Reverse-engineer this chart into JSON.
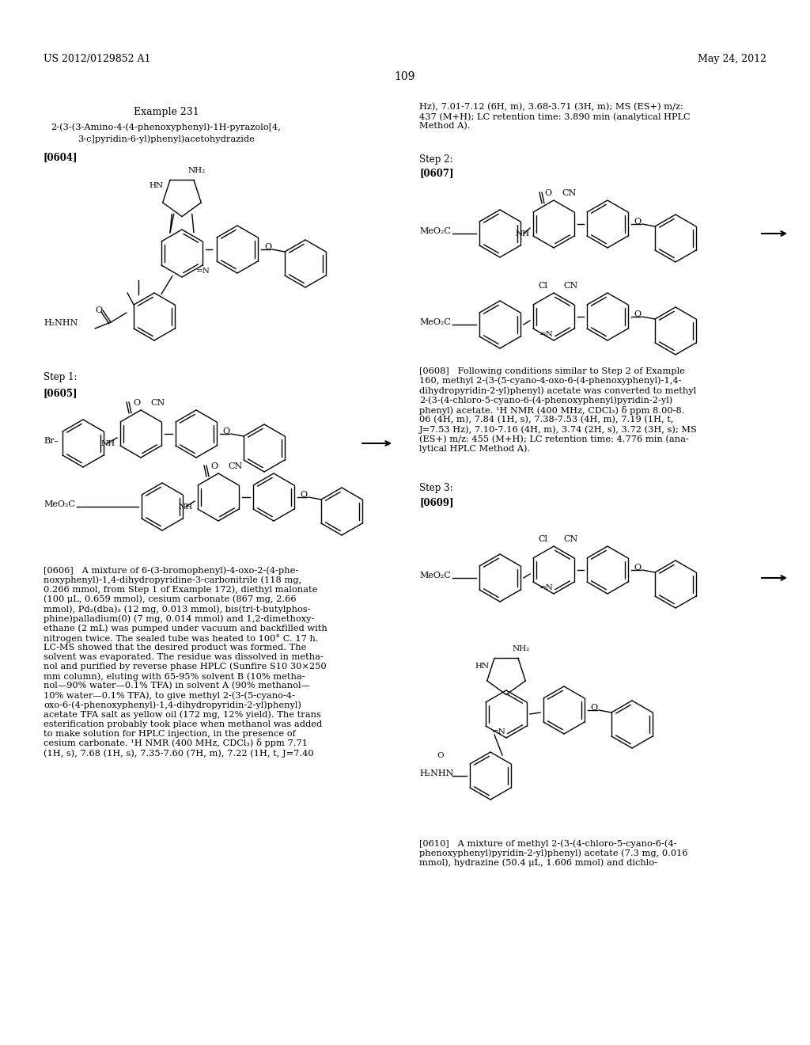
{
  "background_color": "#ffffff",
  "header_left": "US 2012/0129852 A1",
  "header_right": "May 24, 2012",
  "page_number": "109",
  "figsize": [
    10.24,
    13.2
  ],
  "dpi": 100
}
